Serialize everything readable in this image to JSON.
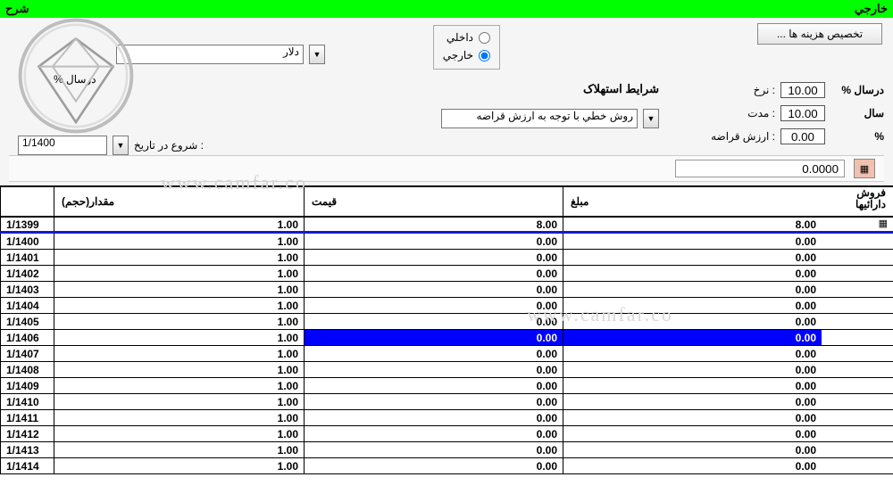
{
  "colors": {
    "header_bg": "#00ff00",
    "selected_bg": "#0000ff",
    "selected_fg": "#ffffff",
    "grid_line": "#000000"
  },
  "topbar": {
    "right": "خارجي",
    "left": "شرح"
  },
  "buttons": {
    "allocate": "تخصيص هزينه ها ..."
  },
  "radios": {
    "domestic": "داخلي",
    "foreign": "خارجي",
    "selected": "foreign"
  },
  "currency": {
    "label": "دلار",
    "persal_label": "درسال %"
  },
  "depreciation": {
    "title": "شرايط استهلاک",
    "rate_label": "درسال %",
    "rate_value": "10.00",
    "rate_suffix": ": نرخ",
    "years_label": "سال",
    "years_value": "10.00",
    "years_suffix": ": مدت",
    "salvage_pct": "%",
    "salvage_value": "0.00",
    "salvage_suffix": ": ارزش قراضه",
    "method": "روش خطي با توجه به ارزش قراضه",
    "start_label": ": شروع در تاريخ",
    "start_value": "1/1400"
  },
  "toolbar": {
    "zero": "0.0000"
  },
  "grid": {
    "headers": {
      "qty": "مقدار(حجم)",
      "price": "قيمت",
      "amount": "مبلغ",
      "side1": "فروش",
      "side2": "دارائيها"
    },
    "rows": [
      {
        "date": "1/1399",
        "qty": "1.00",
        "price": "8.00",
        "amt": "8.00",
        "icon": true,
        "underline": true
      },
      {
        "date": "1/1400",
        "qty": "1.00",
        "price": "0.00",
        "amt": "0.00"
      },
      {
        "date": "1/1401",
        "qty": "1.00",
        "price": "0.00",
        "amt": "0.00"
      },
      {
        "date": "1/1402",
        "qty": "1.00",
        "price": "0.00",
        "amt": "0.00"
      },
      {
        "date": "1/1403",
        "qty": "1.00",
        "price": "0.00",
        "amt": "0.00"
      },
      {
        "date": "1/1404",
        "qty": "1.00",
        "price": "0.00",
        "amt": "0.00"
      },
      {
        "date": "1/1405",
        "qty": "1.00",
        "price": "0.00",
        "amt": "0.00"
      },
      {
        "date": "1/1406",
        "qty": "1.00",
        "price": "0.00",
        "amt": "0.00",
        "selected": true
      },
      {
        "date": "1/1407",
        "qty": "1.00",
        "price": "0.00",
        "amt": "0.00"
      },
      {
        "date": "1/1408",
        "qty": "1.00",
        "price": "0.00",
        "amt": "0.00"
      },
      {
        "date": "1/1409",
        "qty": "1.00",
        "price": "0.00",
        "amt": "0.00"
      },
      {
        "date": "1/1410",
        "qty": "1.00",
        "price": "0.00",
        "amt": "0.00"
      },
      {
        "date": "1/1411",
        "qty": "1.00",
        "price": "0.00",
        "amt": "0.00"
      },
      {
        "date": "1/1412",
        "qty": "1.00",
        "price": "0.00",
        "amt": "0.00"
      },
      {
        "date": "1/1413",
        "qty": "1.00",
        "price": "0.00",
        "amt": "0.00"
      },
      {
        "date": "1/1414",
        "qty": "1.00",
        "price": "0.00",
        "amt": "0.00"
      }
    ]
  },
  "watermark": "www.camfar.co"
}
